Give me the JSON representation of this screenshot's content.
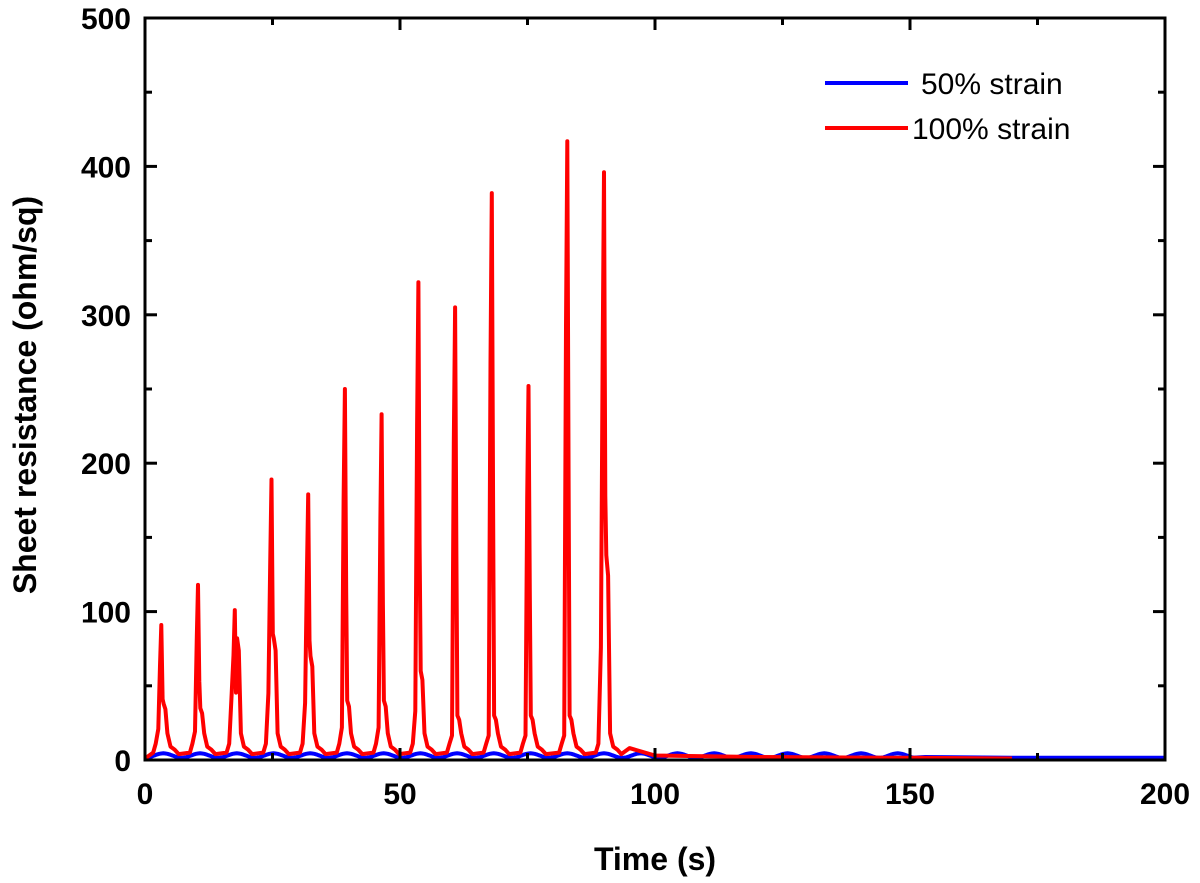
{
  "chart_data": {
    "type": "line",
    "title": "",
    "xlabel": "Time (s)",
    "ylabel": "Sheet resistance (ohm/sq)",
    "xlim": [
      0,
      200
    ],
    "ylim": [
      0,
      500
    ],
    "x_ticks": [
      0,
      50,
      100,
      150,
      200
    ],
    "x_tick_labels": [
      "0",
      "50",
      "100",
      "150",
      "200"
    ],
    "y_ticks": [
      0,
      100,
      200,
      300,
      400,
      500
    ],
    "y_tick_labels": [
      "0",
      "100",
      "200",
      "300",
      "400",
      "500"
    ],
    "grid": false,
    "legend_position": "top-right",
    "series": [
      {
        "name": "50% strain",
        "color": "#0000ff",
        "cycle_period": 7.2,
        "cycles": 21,
        "baseline": 1.5,
        "amplitude": 3,
        "end_plateau": [
          [
            153,
            2
          ],
          [
            170,
            1.5
          ],
          [
            200,
            1.5
          ]
        ]
      },
      {
        "name": "100% strain",
        "color": "#ff0000",
        "baseline": 1,
        "peaks": [
          {
            "t": 3.2,
            "main": 91,
            "secondary": 38
          },
          {
            "t": 10.4,
            "main": 118,
            "secondary": 35
          },
          {
            "t": 17.6,
            "main": 101,
            "secondary": 82
          },
          {
            "t": 24.8,
            "main": 189,
            "secondary": 82
          },
          {
            "t": 32.0,
            "main": 179,
            "secondary": 70
          },
          {
            "t": 39.2,
            "main": 250,
            "secondary": 40
          },
          {
            "t": 46.4,
            "main": 233,
            "secondary": 40
          },
          {
            "t": 53.6,
            "main": 322,
            "secondary": 60
          },
          {
            "t": 60.8,
            "main": 305,
            "secondary": 30
          },
          {
            "t": 68.0,
            "main": 382,
            "secondary": 30
          },
          {
            "t": 75.2,
            "main": 252,
            "secondary": 30
          },
          {
            "t": 82.8,
            "main": 417,
            "secondary": 30
          },
          {
            "t": 90.0,
            "main": 396,
            "secondary": 138
          }
        ],
        "end_points": [
          [
            95,
            8
          ],
          [
            100,
            3
          ],
          [
            120,
            2
          ],
          [
            150,
            1.5
          ],
          [
            170,
            1
          ]
        ]
      }
    ]
  }
}
